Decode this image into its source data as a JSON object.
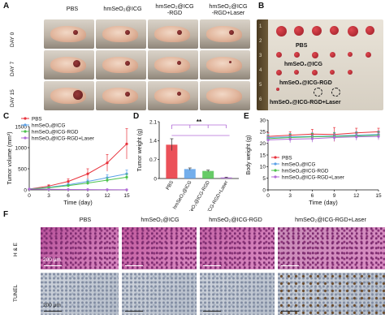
{
  "panels": {
    "A": "A",
    "B": "B",
    "C": "C",
    "D": "D",
    "E": "E",
    "F": "F"
  },
  "panelA": {
    "columns": [
      "PBS",
      "hmSeO₂@ICG",
      "hmSeO₂@ICG\n-RGD",
      "hmSeO₂@ICG\n-RGD+Laser"
    ],
    "rows": [
      "DAY 0",
      "DAY 7",
      "DAY 15"
    ]
  },
  "panelB": {
    "labels": [
      "PBS",
      "hmSeO₂@ICG",
      "hmSeO₂@ICG-RGD",
      "hmSeO₂@ICG-RGD+Laser"
    ],
    "ruler_numbers": [
      "1",
      "2",
      "3",
      "4",
      "5",
      "6"
    ]
  },
  "panelF": {
    "columns": [
      "PBS",
      "hmSeO₂@ICG",
      "hmSeO₂@ICG-RGD",
      "hmSeO₂@ICG-RGD+Laser"
    ],
    "rows": [
      "H & E",
      "TUNEL"
    ],
    "scale_bar": "200 μm"
  },
  "chart_data": [
    {
      "type": "line",
      "panel": "C",
      "xlabel": "Time (day)",
      "ylabel": "Tumor volume (mm³)",
      "x": [
        0,
        3,
        6,
        9,
        12,
        15
      ],
      "xlim": [
        0,
        15
      ],
      "ylim": [
        0,
        1500
      ],
      "yticks": [
        0,
        500,
        1000,
        1500
      ],
      "xticks": [
        0,
        3,
        6,
        9,
        12,
        15
      ],
      "series": [
        {
          "name": "PBS",
          "color": "#e8323c",
          "values": [
            20,
            90,
            200,
            380,
            640,
            1090
          ],
          "errors": [
            10,
            30,
            60,
            120,
            200,
            360
          ]
        },
        {
          "name": "hmSeO₂@ICG",
          "color": "#5aa0e8",
          "values": [
            20,
            60,
            120,
            200,
            290,
            380
          ],
          "errors": [
            8,
            20,
            35,
            50,
            70,
            90
          ]
        },
        {
          "name": "hmSeO₂@ICG-RGD",
          "color": "#4cc24c",
          "values": [
            20,
            50,
            100,
            160,
            230,
            300
          ],
          "errors": [
            8,
            15,
            25,
            40,
            55,
            70
          ]
        },
        {
          "name": "hmSeO₂@ICG-RGD+Laser",
          "color": "#b06ad6",
          "values": [
            20,
            15,
            10,
            8,
            5,
            3
          ],
          "errors": [
            5,
            5,
            4,
            3,
            3,
            2
          ]
        }
      ]
    },
    {
      "type": "bar",
      "panel": "D",
      "ylabel": "Tumor weight (g)",
      "ylim": [
        0,
        2.1
      ],
      "yticks": [
        0,
        0.7,
        1.4,
        2.1
      ],
      "categories": [
        "PBS",
        "hmSeO₂@ICG",
        "hmSeO₂@ICG-RGD",
        "hmSeO₂@ICG-RGD+Laser"
      ],
      "values": [
        1.25,
        0.35,
        0.28,
        0.04
      ],
      "errors": [
        0.22,
        0.04,
        0.03,
        0.01
      ],
      "colors": [
        "#e8323c",
        "#5aa0e8",
        "#4cc24c",
        "#b06ad6"
      ],
      "annotation": "**"
    },
    {
      "type": "line",
      "panel": "E",
      "xlabel": "Time (day)",
      "ylabel": "Body weight (g)",
      "x": [
        0,
        3,
        6,
        9,
        12,
        15
      ],
      "xlim": [
        0,
        15
      ],
      "ylim": [
        0,
        30
      ],
      "yticks": [
        0,
        5,
        10,
        15,
        20,
        25,
        30
      ],
      "xticks": [
        0,
        3,
        6,
        9,
        12,
        15
      ],
      "series": [
        {
          "name": "PBS",
          "color": "#e8323c",
          "values": [
            23.0,
            23.5,
            24.0,
            23.8,
            24.5,
            25.0
          ],
          "errors": [
            1.5,
            1.5,
            2.0,
            3.0,
            2.0,
            1.5
          ]
        },
        {
          "name": "hmSeO₂@ICG",
          "color": "#5aa0e8",
          "values": [
            22.5,
            22.8,
            23.0,
            23.2,
            23.5,
            23.8
          ],
          "errors": [
            1.5,
            1.5,
            1.5,
            1.5,
            1.5,
            1.5
          ]
        },
        {
          "name": "hmSeO₂@ICG-RGD",
          "color": "#4cc24c",
          "values": [
            22.0,
            22.5,
            22.8,
            23.0,
            23.2,
            23.5
          ],
          "errors": [
            1.5,
            1.5,
            1.5,
            1.5,
            1.5,
            1.5
          ]
        },
        {
          "name": "hmSeO₂@ICG-RGD+Laser",
          "color": "#b06ad6",
          "values": [
            21.5,
            21.8,
            22.0,
            22.5,
            22.8,
            23.0
          ],
          "errors": [
            1.5,
            1.5,
            1.5,
            1.5,
            1.5,
            1.5
          ]
        }
      ]
    }
  ]
}
